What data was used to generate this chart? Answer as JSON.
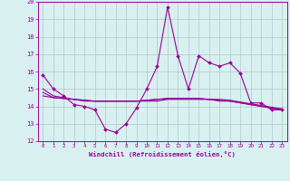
{
  "x": [
    0,
    1,
    2,
    3,
    4,
    5,
    6,
    7,
    8,
    9,
    10,
    11,
    12,
    13,
    14,
    15,
    16,
    17,
    18,
    19,
    20,
    21,
    22,
    23
  ],
  "line1": [
    15.8,
    15.0,
    14.6,
    14.1,
    14.0,
    13.8,
    12.7,
    12.5,
    13.0,
    13.9,
    15.0,
    16.3,
    19.7,
    16.9,
    15.0,
    16.9,
    16.5,
    16.3,
    16.5,
    15.9,
    14.2,
    14.2,
    13.8,
    13.8
  ],
  "line2": [
    15.0,
    14.6,
    14.5,
    14.4,
    14.3,
    14.3,
    14.3,
    14.3,
    14.3,
    14.3,
    14.3,
    14.3,
    14.4,
    14.4,
    14.4,
    14.4,
    14.4,
    14.3,
    14.3,
    14.2,
    14.1,
    14.0,
    13.9,
    13.85
  ],
  "line3": [
    14.8,
    14.5,
    14.45,
    14.4,
    14.35,
    14.3,
    14.3,
    14.3,
    14.3,
    14.3,
    14.35,
    14.4,
    14.45,
    14.45,
    14.45,
    14.45,
    14.4,
    14.4,
    14.35,
    14.25,
    14.15,
    14.05,
    13.95,
    13.85
  ],
  "line4": [
    14.6,
    14.5,
    14.45,
    14.4,
    14.35,
    14.3,
    14.3,
    14.3,
    14.3,
    14.3,
    14.35,
    14.4,
    14.45,
    14.45,
    14.45,
    14.45,
    14.4,
    14.35,
    14.3,
    14.2,
    14.1,
    14.0,
    13.9,
    13.8
  ],
  "line_color": "#990099",
  "bg_color": "#d8f0f0",
  "grid_color": "#b0c8c8",
  "xlabel": "Windchill (Refroidissement éolien,°C)",
  "ylim": [
    12,
    20
  ],
  "xlim": [
    -0.5,
    23.5
  ],
  "yticks": [
    12,
    13,
    14,
    15,
    16,
    17,
    18,
    19,
    20
  ],
  "xticks": [
    0,
    1,
    2,
    3,
    4,
    5,
    6,
    7,
    8,
    9,
    10,
    11,
    12,
    13,
    14,
    15,
    16,
    17,
    18,
    19,
    20,
    21,
    22,
    23
  ]
}
